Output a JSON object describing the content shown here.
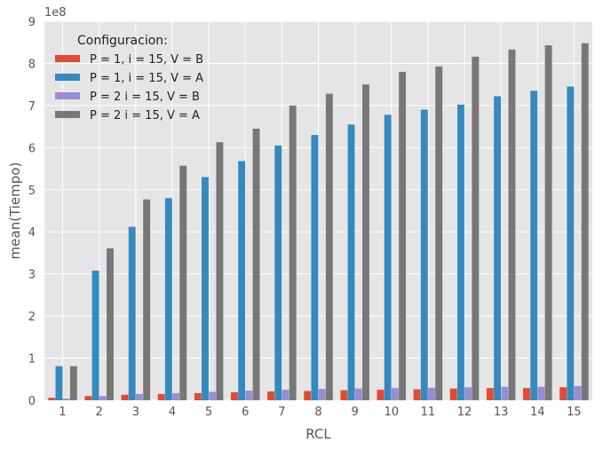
{
  "chart_data": {
    "type": "bar",
    "xlabel": "RCL",
    "ylabel": "mean(Tiempo)",
    "y_multiplier": "1e8",
    "ylim": [
      0,
      9
    ],
    "yticks": [
      "0",
      "1",
      "2",
      "3",
      "4",
      "5",
      "6",
      "7",
      "8",
      "9"
    ],
    "grid": true,
    "legend_position": "top-left",
    "legend_title": "Configuracion:",
    "categories": [
      "1",
      "2",
      "3",
      "4",
      "5",
      "6",
      "7",
      "8",
      "9",
      "10",
      "11",
      "12",
      "13",
      "14",
      "15"
    ],
    "series": [
      {
        "name": "P = 1, i = 15, V = B",
        "color": "#E24A33",
        "values": [
          0.06,
          0.1,
          0.13,
          0.15,
          0.17,
          0.19,
          0.21,
          0.22,
          0.24,
          0.25,
          0.26,
          0.28,
          0.29,
          0.29,
          0.31
        ]
      },
      {
        "name": "P = 1, i = 15, V = A",
        "color": "#348ABD",
        "values": [
          0.81,
          3.08,
          4.12,
          4.8,
          5.3,
          5.68,
          6.05,
          6.3,
          6.55,
          6.78,
          6.9,
          7.02,
          7.22,
          7.35,
          7.45
        ]
      },
      {
        "name": "P = 2 i = 15, V = B",
        "color": "#988ED5",
        "values": [
          0.04,
          0.1,
          0.15,
          0.17,
          0.2,
          0.23,
          0.25,
          0.27,
          0.28,
          0.29,
          0.3,
          0.31,
          0.32,
          0.32,
          0.34
        ]
      },
      {
        "name": "P = 2 i = 15, V = A",
        "color": "#777777",
        "values": [
          0.81,
          3.61,
          4.77,
          5.57,
          6.13,
          6.45,
          7.0,
          7.28,
          7.5,
          7.8,
          7.93,
          8.16,
          8.33,
          8.43,
          8.48
        ]
      }
    ]
  }
}
